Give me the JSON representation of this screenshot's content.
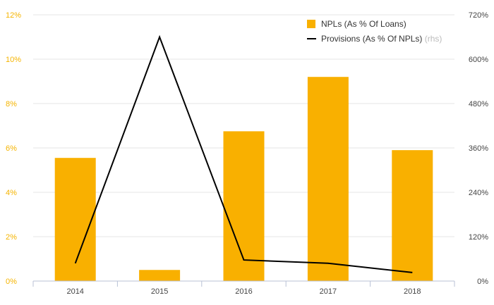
{
  "chart_data": {
    "type": "bar",
    "categories": [
      "2014",
      "2015",
      "2016",
      "2017",
      "2018"
    ],
    "series": [
      {
        "name": "NPLs (As % Of Loans)",
        "type": "bar",
        "axis": "left",
        "color": "#f9b000",
        "values": [
          5.55,
          0.5,
          6.75,
          9.2,
          5.9
        ]
      },
      {
        "name": "Provisions (As % Of NPLs)",
        "axis_note": "(rhs)",
        "type": "line",
        "axis": "right",
        "color": "#000000",
        "values": [
          48,
          660,
          57,
          48,
          23
        ]
      }
    ],
    "y_left": {
      "ylim": [
        0,
        12
      ],
      "ticks": [
        "0%",
        "2%",
        "4%",
        "6%",
        "8%",
        "10%",
        "12%"
      ],
      "color": "#f5b400"
    },
    "y_right": {
      "ylim": [
        0,
        720
      ],
      "ticks": [
        "0%",
        "120%",
        "240%",
        "360%",
        "480%",
        "600%",
        "720%"
      ]
    },
    "grid": true,
    "legend_position": "top-right"
  }
}
